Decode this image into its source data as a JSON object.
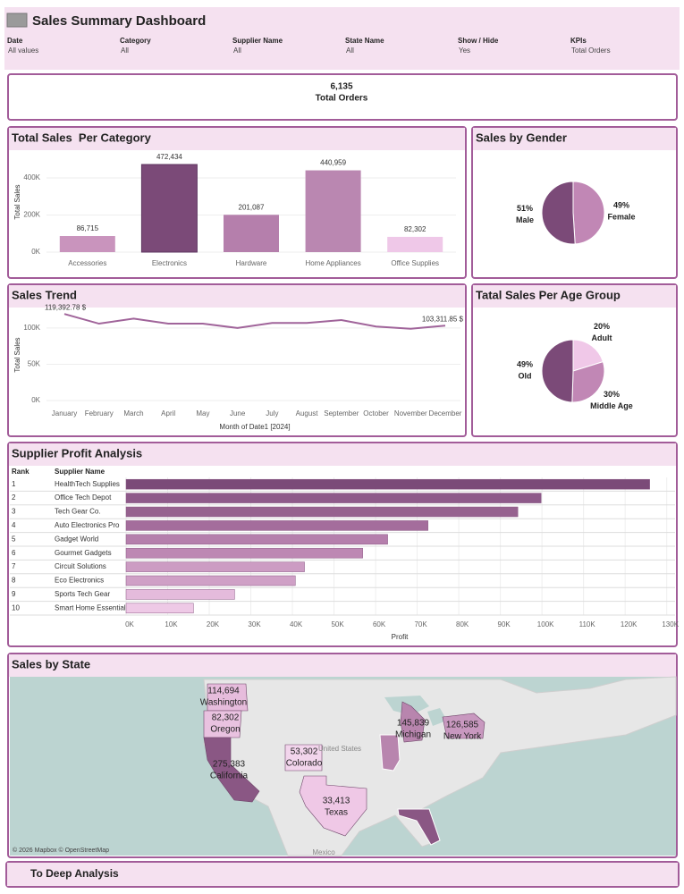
{
  "header": {
    "title": "Sales Summary Dashboard"
  },
  "filters": [
    {
      "label": "Date",
      "value": "All values"
    },
    {
      "label": "Category",
      "value": "All"
    },
    {
      "label": "Supplier Name",
      "value": "All"
    },
    {
      "label": "State Name",
      "value": "All"
    },
    {
      "label": "Show / Hide",
      "value": "Yes"
    },
    {
      "label": "KPIs",
      "value": "Total Orders"
    }
  ],
  "kpi": {
    "value": "6,135",
    "label": "Total Orders"
  },
  "chart_data": [
    {
      "type": "bar",
      "title": "Total Sales  Per Category",
      "ylabel": "Total Sales",
      "categories": [
        "Accessories",
        "Electronics",
        "Hardware",
        "Home Appliances",
        "Office Supplies"
      ],
      "values": [
        86715,
        472434,
        201087,
        440959,
        82302
      ],
      "value_labels": [
        "86,715",
        "472,434",
        "201,087",
        "440,959",
        "82,302"
      ],
      "colors": [
        "#c994bd",
        "#7b4a78",
        "#b57fac",
        "#ba87b1",
        "#efc8e8"
      ],
      "ylim": [
        0,
        540000
      ],
      "yticks": [
        {
          "value": 0,
          "label": "0K"
        },
        {
          "value": 200000,
          "label": "200K"
        },
        {
          "value": 400000,
          "label": "400K"
        }
      ]
    },
    {
      "type": "pie",
      "title": "Sales by Gender",
      "categories": [
        "Female",
        "Male"
      ],
      "values": [
        49,
        51
      ],
      "value_labels": [
        "49%",
        "51%"
      ],
      "colors": [
        "#c187b5",
        "#7b4a78"
      ]
    },
    {
      "type": "line",
      "title": "Sales Trend",
      "ylabel": "Total Sales",
      "xlabel": "Month of Date1 [2024]",
      "categories": [
        "January",
        "February",
        "March",
        "April",
        "May",
        "June",
        "July",
        "August",
        "September",
        "October",
        "November",
        "December"
      ],
      "values": [
        119392.78,
        106000,
        113000,
        106000,
        106000,
        100000,
        107000,
        107000,
        111000,
        102000,
        99000,
        103311.85
      ],
      "value_labels": [
        "119,392.78 $",
        null,
        null,
        null,
        null,
        null,
        null,
        null,
        null,
        null,
        null,
        "103,311.85 $"
      ],
      "color": "#a0649a",
      "ylim": [
        0,
        127000
      ],
      "yticks": [
        {
          "value": 0,
          "label": "0K"
        },
        {
          "value": 50000,
          "label": "50K"
        },
        {
          "value": 100000,
          "label": "100K"
        }
      ]
    },
    {
      "type": "pie",
      "title": "Tatal Sales Per Age Group",
      "categories": [
        "Adult",
        "Middle Age",
        "Old"
      ],
      "values": [
        20,
        30,
        49
      ],
      "value_labels": [
        "20%",
        "30%",
        "49%"
      ],
      "colors": [
        "#f0c8e8",
        "#c187b5",
        "#7b4a78"
      ]
    },
    {
      "type": "hbar",
      "title": "Supplier Profit Analysis",
      "columns": [
        "Rank",
        "Supplier Name"
      ],
      "xlabel": "Profit",
      "ranks": [
        1,
        2,
        3,
        4,
        5,
        6,
        7,
        8,
        9,
        10
      ],
      "categories": [
        "HealthTech Supplies",
        "Office Tech Depot",
        "Tech Gear Co.",
        "Auto Electronics Pro",
        "Gadget World",
        "Gourmet Gadgets",
        "Circuit Solutions",
        "Eco Electronics",
        "Sports Tech Gear",
        "Smart Home Essentials"
      ],
      "values": [
        125900,
        99800,
        94200,
        72600,
        62900,
        56900,
        42900,
        40700,
        26100,
        16200
      ],
      "colors": [
        "#7b4a78",
        "#8e5a8a",
        "#96628f",
        "#a46d9c",
        "#b57fac",
        "#bd88b3",
        "#cc9cc3",
        "#cfa0c6",
        "#e4bbdc",
        "#eec9e6"
      ],
      "xlim": [
        0,
        132000
      ],
      "xticks": [
        {
          "value": 0,
          "label": "0K"
        },
        {
          "value": 10000,
          "label": "10K"
        },
        {
          "value": 20000,
          "label": "20K"
        },
        {
          "value": 30000,
          "label": "30K"
        },
        {
          "value": 40000,
          "label": "40K"
        },
        {
          "value": 50000,
          "label": "50K"
        },
        {
          "value": 60000,
          "label": "60K"
        },
        {
          "value": 70000,
          "label": "70K"
        },
        {
          "value": 80000,
          "label": "80K"
        },
        {
          "value": 90000,
          "label": "90K"
        },
        {
          "value": 100000,
          "label": "100K"
        },
        {
          "value": 110000,
          "label": "110K"
        },
        {
          "value": 120000,
          "label": "120K"
        },
        {
          "value": 130000,
          "label": "130K"
        }
      ]
    },
    {
      "type": "map",
      "title": "Sales by State",
      "categories": [
        "Washington",
        "Oregon",
        "California",
        "Colorado",
        "Texas",
        "Michigan",
        "New York"
      ],
      "values": [
        114694,
        82302,
        275383,
        53302,
        33413,
        145839,
        126585
      ],
      "value_labels": [
        "114,694",
        "82,302",
        "275,383",
        "53,302",
        "33,413",
        "145,839",
        "126,585"
      ],
      "colors": [
        "#e6bcdc",
        "#e9c2e0",
        "#8a5784",
        "#f2d5ec",
        "#efc8e6",
        "#b885ae",
        "#c898bf"
      ],
      "places": [
        "United States",
        "Mexico"
      ],
      "attribution": "© 2026 Mapbox © OpenStreetMap"
    }
  ],
  "footer": {
    "button": "To Deep Analysis"
  }
}
